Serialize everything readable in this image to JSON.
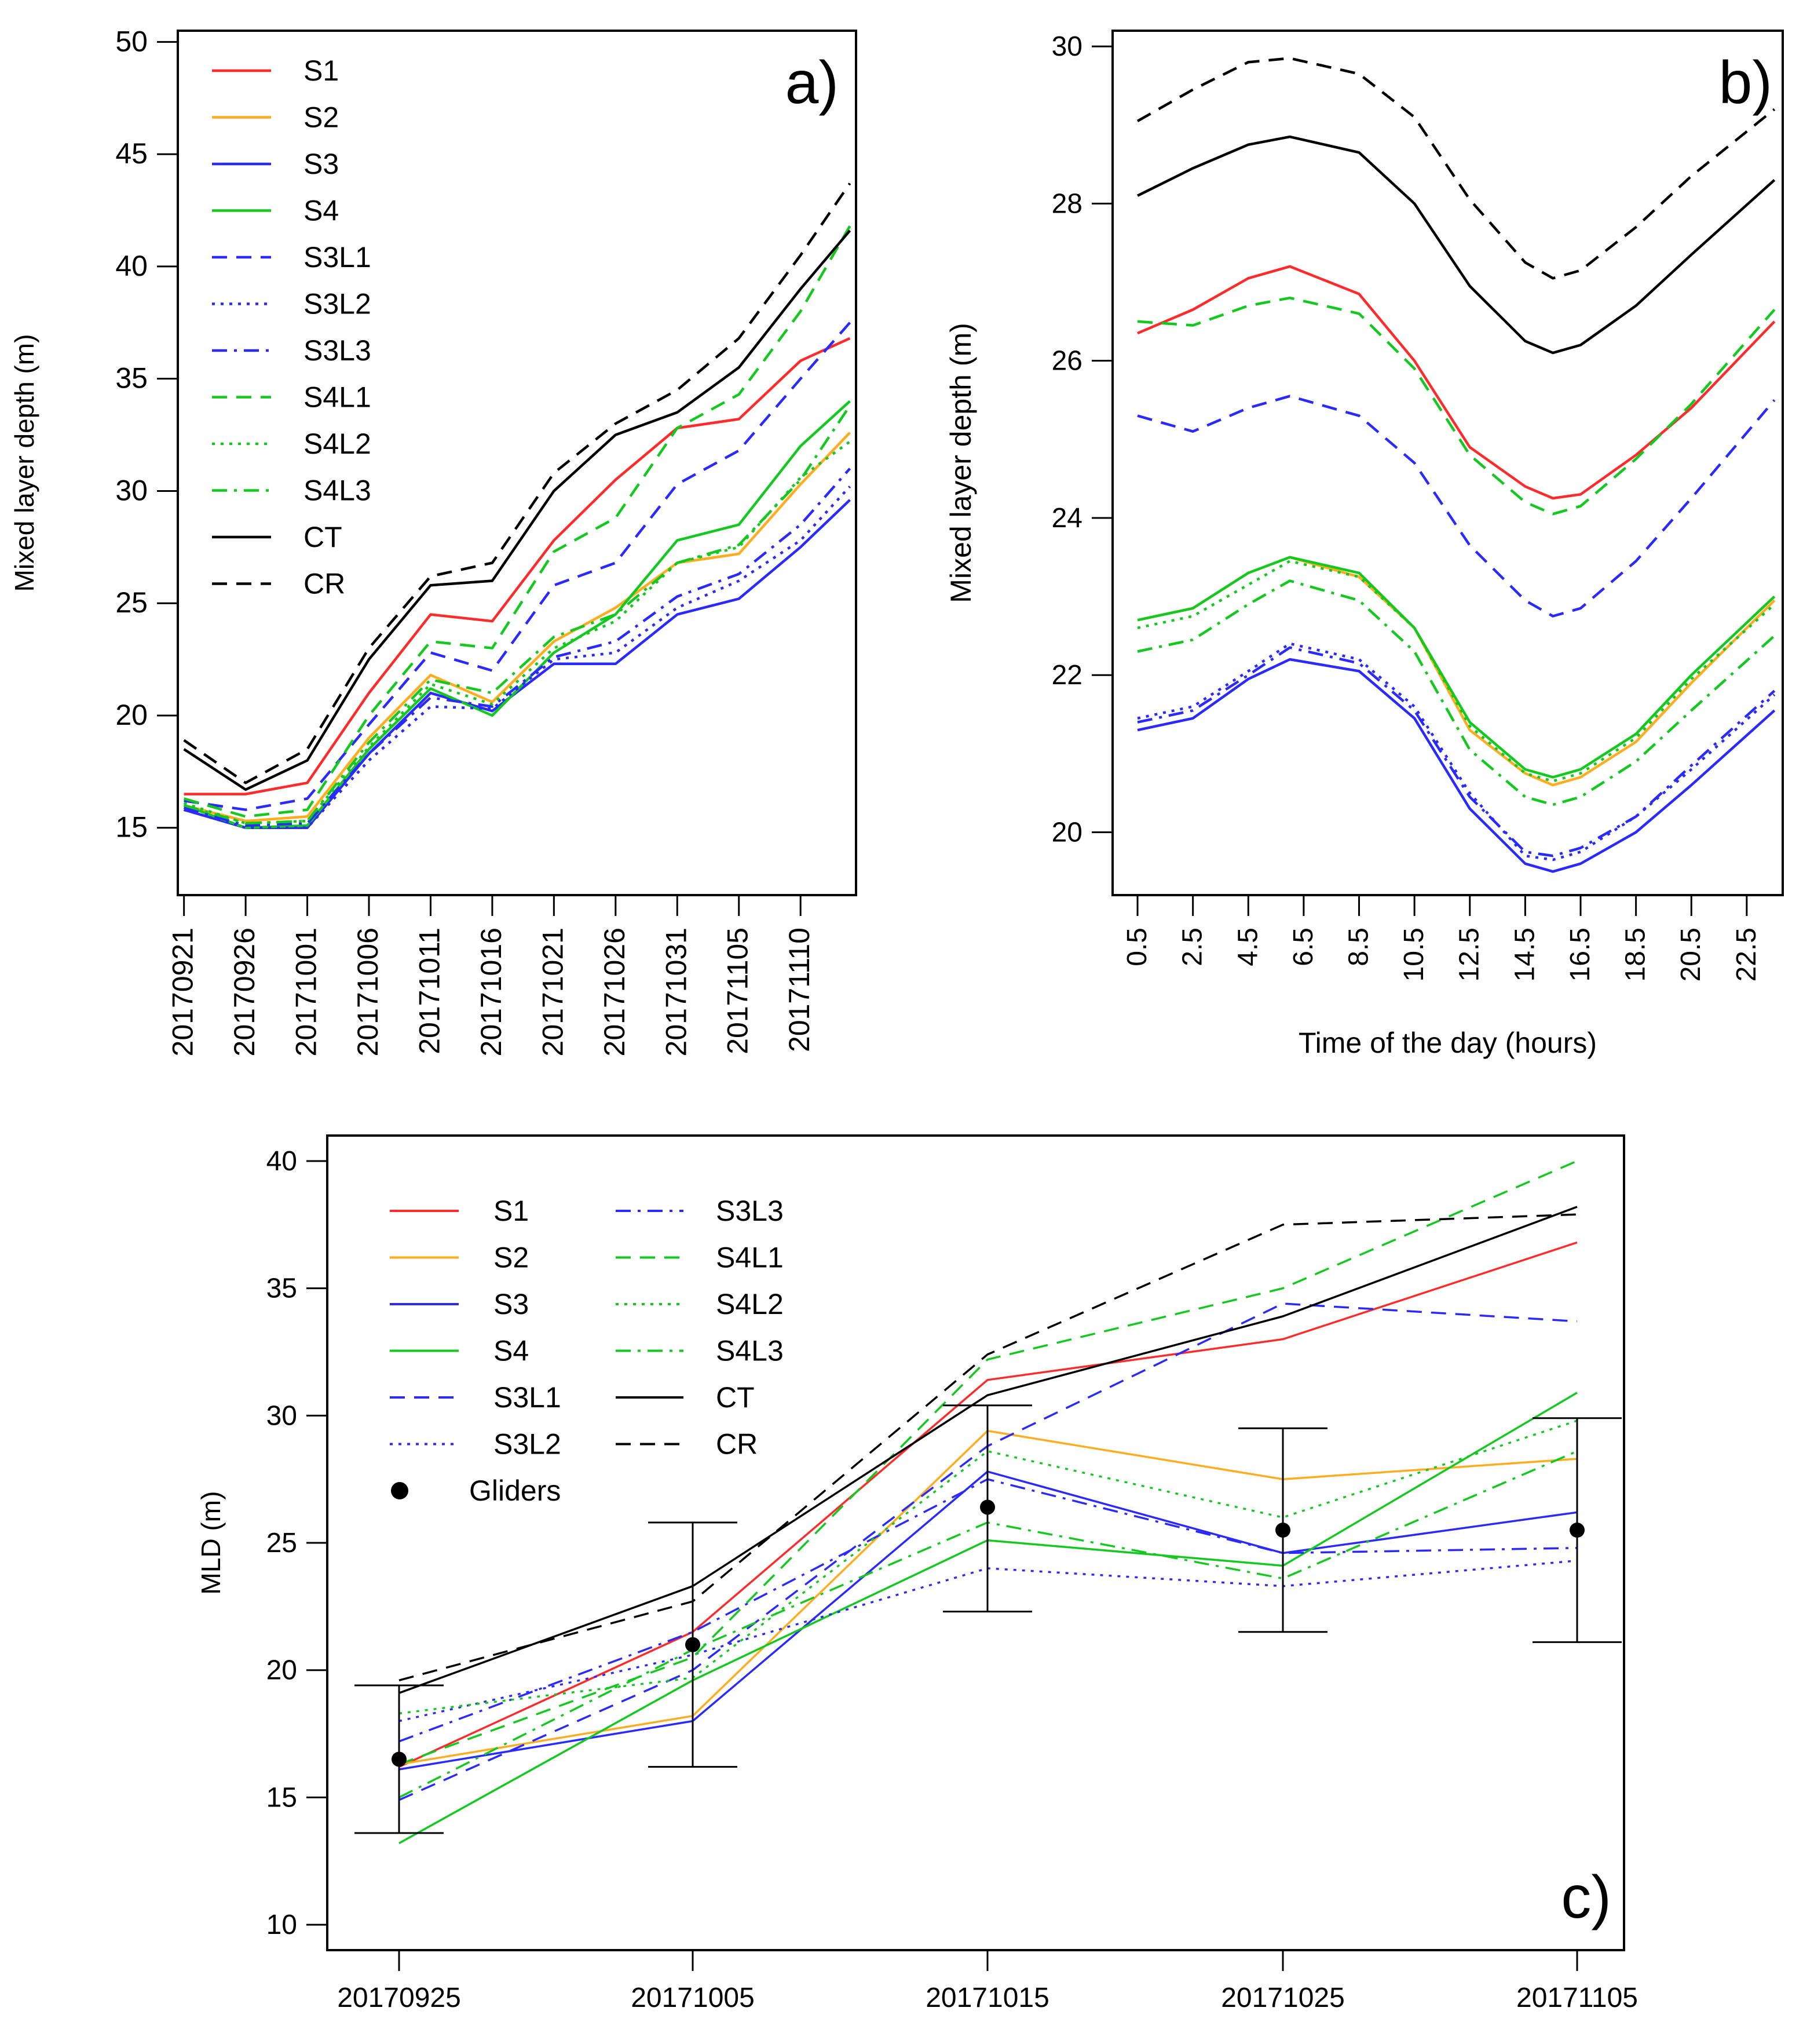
{
  "figure": {
    "panels": [
      "a",
      "b",
      "c"
    ]
  },
  "styles": {
    "S1": {
      "color": "#ff2a2a",
      "dash": "solid"
    },
    "S2": {
      "color": "#ffad1f",
      "dash": "solid"
    },
    "S3": {
      "color": "#2a2aff",
      "dash": "solid"
    },
    "S4": {
      "color": "#13c81f",
      "dash": "solid"
    },
    "S3L1": {
      "color": "#2a2aff",
      "dash": "dashed"
    },
    "S3L2": {
      "color": "#2a2aff",
      "dash": "dotted"
    },
    "S3L3": {
      "color": "#2a2aff",
      "dash": "dashdot"
    },
    "S4L1": {
      "color": "#13c81f",
      "dash": "dashed"
    },
    "S4L2": {
      "color": "#13c81f",
      "dash": "dotted"
    },
    "S4L3": {
      "color": "#13c81f",
      "dash": "dashdot"
    },
    "CT": {
      "color": "#000000",
      "dash": "solid"
    },
    "CR": {
      "color": "#000000",
      "dash": "dashed"
    }
  },
  "chart_data": [
    {
      "id": "a",
      "type": "line",
      "panel_label": "a)",
      "title": "",
      "xlabel": "",
      "ylabel": "Mixed layer depth (m)",
      "ylim": [
        12,
        50.5
      ],
      "xlim": [
        -0.5,
        54.5
      ],
      "yticks": [
        15,
        20,
        25,
        30,
        35,
        40,
        45,
        50
      ],
      "xticks": [
        {
          "x": 0,
          "label": "20170921"
        },
        {
          "x": 5,
          "label": "20170926"
        },
        {
          "x": 10,
          "label": "20171001"
        },
        {
          "x": 15,
          "label": "20171006"
        },
        {
          "x": 20,
          "label": "20171011"
        },
        {
          "x": 25,
          "label": "20171016"
        },
        {
          "x": 30,
          "label": "20171021"
        },
        {
          "x": 35,
          "label": "20171026"
        },
        {
          "x": 40,
          "label": "20171031"
        },
        {
          "x": 45,
          "label": "20171105"
        },
        {
          "x": 50,
          "label": "20171110"
        }
      ],
      "x": [
        0,
        5,
        10,
        15,
        20,
        25,
        30,
        35,
        40,
        45,
        50,
        54
      ],
      "series": [
        {
          "name": "S1",
          "values": [
            16.5,
            16.5,
            17.0,
            21.0,
            24.5,
            24.2,
            27.8,
            30.5,
            32.8,
            33.2,
            35.8,
            36.8
          ]
        },
        {
          "name": "S2",
          "values": [
            16.0,
            15.3,
            15.5,
            19.0,
            21.8,
            20.6,
            23.3,
            24.8,
            26.8,
            27.2,
            30.3,
            32.6
          ]
        },
        {
          "name": "S3",
          "values": [
            15.8,
            15.0,
            15.0,
            18.3,
            21.0,
            20.2,
            22.3,
            22.3,
            24.5,
            25.2,
            27.5,
            29.6
          ]
        },
        {
          "name": "S4",
          "values": [
            16.0,
            15.0,
            15.1,
            18.5,
            21.2,
            20.0,
            22.8,
            24.5,
            27.8,
            28.5,
            32.0,
            34.0
          ]
        },
        {
          "name": "S3L1",
          "values": [
            16.2,
            15.8,
            16.3,
            19.6,
            22.8,
            22.0,
            25.8,
            26.8,
            30.3,
            31.8,
            35.0,
            37.5
          ]
        },
        {
          "name": "S3L2",
          "values": [
            15.8,
            15.0,
            15.0,
            18.0,
            20.4,
            20.3,
            22.5,
            22.8,
            24.8,
            26.0,
            27.8,
            30.2
          ]
        },
        {
          "name": "S3L3",
          "values": [
            15.9,
            15.1,
            15.2,
            18.3,
            20.8,
            20.4,
            22.6,
            23.3,
            25.3,
            26.3,
            28.5,
            31.0
          ]
        },
        {
          "name": "S4L1",
          "values": [
            16.3,
            15.5,
            15.8,
            20.0,
            23.3,
            23.0,
            27.3,
            28.8,
            32.8,
            34.3,
            38.0,
            41.8
          ]
        },
        {
          "name": "S4L2",
          "values": [
            16.1,
            15.2,
            15.3,
            18.6,
            21.4,
            20.5,
            23.0,
            24.2,
            26.8,
            27.5,
            30.6,
            32.2
          ]
        },
        {
          "name": "S4L3",
          "values": [
            16.0,
            15.2,
            15.3,
            18.8,
            21.6,
            21.0,
            23.5,
            24.5,
            26.8,
            27.6,
            30.5,
            33.8
          ]
        },
        {
          "name": "CT",
          "values": [
            18.5,
            16.7,
            18.0,
            22.5,
            25.8,
            26.0,
            30.0,
            32.5,
            33.5,
            35.5,
            39.0,
            41.6
          ]
        },
        {
          "name": "CR",
          "values": [
            18.9,
            17.0,
            18.5,
            23.0,
            26.2,
            26.8,
            30.8,
            33.0,
            34.5,
            36.8,
            40.5,
            43.7
          ]
        }
      ],
      "legend": {
        "position": "top-left",
        "entries": [
          "S1",
          "S2",
          "S3",
          "S4",
          "S3L1",
          "S3L2",
          "S3L3",
          "S4L1",
          "S4L2",
          "S4L3",
          "CT",
          "CR"
        ]
      }
    },
    {
      "id": "b",
      "type": "line",
      "panel_label": "b)",
      "title": "",
      "xlabel": "Time of the day (hours)",
      "ylabel": "Mixed layer depth (m)",
      "ylim": [
        19.2,
        30.2
      ],
      "xlim": [
        -0.4,
        23.8
      ],
      "yticks": [
        20,
        22,
        24,
        26,
        28,
        30
      ],
      "xticks": [
        {
          "x": 0.5,
          "label": "0.5"
        },
        {
          "x": 2.5,
          "label": "2.5"
        },
        {
          "x": 4.5,
          "label": "4.5"
        },
        {
          "x": 6.5,
          "label": "6.5"
        },
        {
          "x": 8.5,
          "label": "8.5"
        },
        {
          "x": 10.5,
          "label": "10.5"
        },
        {
          "x": 12.5,
          "label": "12.5"
        },
        {
          "x": 14.5,
          "label": "14.5"
        },
        {
          "x": 16.5,
          "label": "16.5"
        },
        {
          "x": 18.5,
          "label": "18.5"
        },
        {
          "x": 20.5,
          "label": "20.5"
        },
        {
          "x": 22.5,
          "label": "22.5"
        }
      ],
      "x": [
        0.5,
        2.5,
        4.5,
        6.0,
        8.5,
        10.5,
        12.5,
        14.5,
        15.5,
        16.5,
        18.5,
        20.5,
        23.5
      ],
      "series": [
        {
          "name": "S1",
          "values": [
            26.35,
            26.65,
            27.05,
            27.2,
            26.85,
            26.0,
            24.9,
            24.4,
            24.25,
            24.3,
            24.8,
            25.4,
            26.5
          ]
        },
        {
          "name": "S2",
          "values": [
            22.7,
            22.85,
            23.3,
            23.5,
            23.25,
            22.6,
            21.3,
            20.75,
            20.6,
            20.7,
            21.15,
            21.9,
            22.95
          ]
        },
        {
          "name": "S3",
          "values": [
            21.3,
            21.45,
            21.95,
            22.2,
            22.05,
            21.45,
            20.3,
            19.6,
            19.5,
            19.6,
            20.0,
            20.6,
            21.55
          ]
        },
        {
          "name": "S4",
          "values": [
            22.7,
            22.85,
            23.3,
            23.5,
            23.3,
            22.6,
            21.4,
            20.8,
            20.7,
            20.8,
            21.25,
            22.0,
            23.0
          ]
        },
        {
          "name": "S3L1",
          "values": [
            25.3,
            25.1,
            25.4,
            25.55,
            25.3,
            24.7,
            23.65,
            22.95,
            22.75,
            22.85,
            23.45,
            24.25,
            25.5
          ]
        },
        {
          "name": "S3L2",
          "values": [
            21.45,
            21.6,
            22.05,
            22.4,
            22.2,
            21.6,
            20.5,
            19.7,
            19.65,
            19.75,
            20.2,
            20.8,
            21.75
          ]
        },
        {
          "name": "S3L3",
          "values": [
            21.4,
            21.55,
            22.0,
            22.35,
            22.15,
            21.55,
            20.45,
            19.75,
            19.7,
            19.8,
            20.2,
            20.85,
            21.8
          ]
        },
        {
          "name": "S4L1",
          "values": [
            26.5,
            26.45,
            26.7,
            26.8,
            26.6,
            25.9,
            24.8,
            24.2,
            24.05,
            24.15,
            24.75,
            25.45,
            26.65
          ]
        },
        {
          "name": "S4L2",
          "values": [
            22.6,
            22.75,
            23.15,
            23.45,
            23.25,
            22.6,
            21.35,
            20.75,
            20.65,
            20.75,
            21.2,
            21.95,
            22.9
          ]
        },
        {
          "name": "S4L3",
          "values": [
            22.3,
            22.45,
            22.9,
            23.2,
            22.95,
            22.3,
            21.05,
            20.45,
            20.35,
            20.45,
            20.9,
            21.55,
            22.5
          ]
        },
        {
          "name": "CT",
          "values": [
            28.1,
            28.45,
            28.75,
            28.85,
            28.65,
            28.0,
            26.95,
            26.25,
            26.1,
            26.2,
            26.7,
            27.35,
            28.3
          ]
        },
        {
          "name": "CR",
          "values": [
            29.05,
            29.45,
            29.8,
            29.85,
            29.65,
            29.1,
            28.05,
            27.25,
            27.05,
            27.15,
            27.7,
            28.35,
            29.2
          ]
        }
      ]
    },
    {
      "id": "c",
      "type": "line",
      "panel_label": "c)",
      "title": "",
      "xlabel": "",
      "ylabel": "MLD (m)",
      "ylim": [
        9,
        41
      ],
      "xlim": [
        20170921.9,
        20171111.7
      ],
      "yticks": [
        10,
        15,
        20,
        25,
        30,
        35,
        40
      ],
      "x": [
        0,
        1,
        2,
        3,
        4
      ],
      "xlabels": [
        "20170925",
        "20171005",
        "20171015",
        "20171025",
        "20171105"
      ],
      "series": [
        {
          "name": "S1",
          "values": [
            16.2,
            21.5,
            31.4,
            33.0,
            36.8
          ]
        },
        {
          "name": "S2",
          "values": [
            16.3,
            18.2,
            29.4,
            27.5,
            28.3
          ]
        },
        {
          "name": "S3",
          "values": [
            16.1,
            18.0,
            27.8,
            24.6,
            26.2
          ]
        },
        {
          "name": "S4",
          "values": [
            13.2,
            19.6,
            25.1,
            24.1,
            30.9
          ]
        },
        {
          "name": "S3L1",
          "values": [
            14.9,
            20.0,
            28.8,
            34.4,
            33.7
          ]
        },
        {
          "name": "S3L2",
          "values": [
            18.0,
            20.6,
            24.0,
            23.3,
            24.3
          ]
        },
        {
          "name": "S3L3",
          "values": [
            17.2,
            21.5,
            27.5,
            24.6,
            24.8
          ]
        },
        {
          "name": "S4L1",
          "values": [
            16.3,
            20.5,
            32.2,
            35.0,
            40.0
          ]
        },
        {
          "name": "S4L2",
          "values": [
            18.3,
            19.7,
            28.6,
            26.0,
            29.8
          ]
        },
        {
          "name": "S4L3",
          "values": [
            15.0,
            20.8,
            25.8,
            23.6,
            28.6
          ]
        },
        {
          "name": "CT",
          "values": [
            19.1,
            23.3,
            30.8,
            33.9,
            38.2
          ]
        },
        {
          "name": "CR",
          "values": [
            19.6,
            22.7,
            32.4,
            37.5,
            37.9
          ]
        }
      ],
      "gliders": {
        "name": "Gliders",
        "values": [
          16.5,
          21.0,
          26.4,
          25.5,
          25.5
        ],
        "err_low": [
          13.6,
          16.2,
          22.3,
          21.5,
          21.1
        ],
        "err_high": [
          19.4,
          25.8,
          30.4,
          29.5,
          29.9
        ]
      },
      "legend": {
        "position": "top-left",
        "col1": [
          "S1",
          "S2",
          "S3",
          "S4",
          "S3L1",
          "S3L2",
          "Gliders"
        ],
        "col2": [
          "S3L3",
          "S4L1",
          "S4L2",
          "S4L3",
          "CT",
          "CR"
        ]
      }
    }
  ]
}
